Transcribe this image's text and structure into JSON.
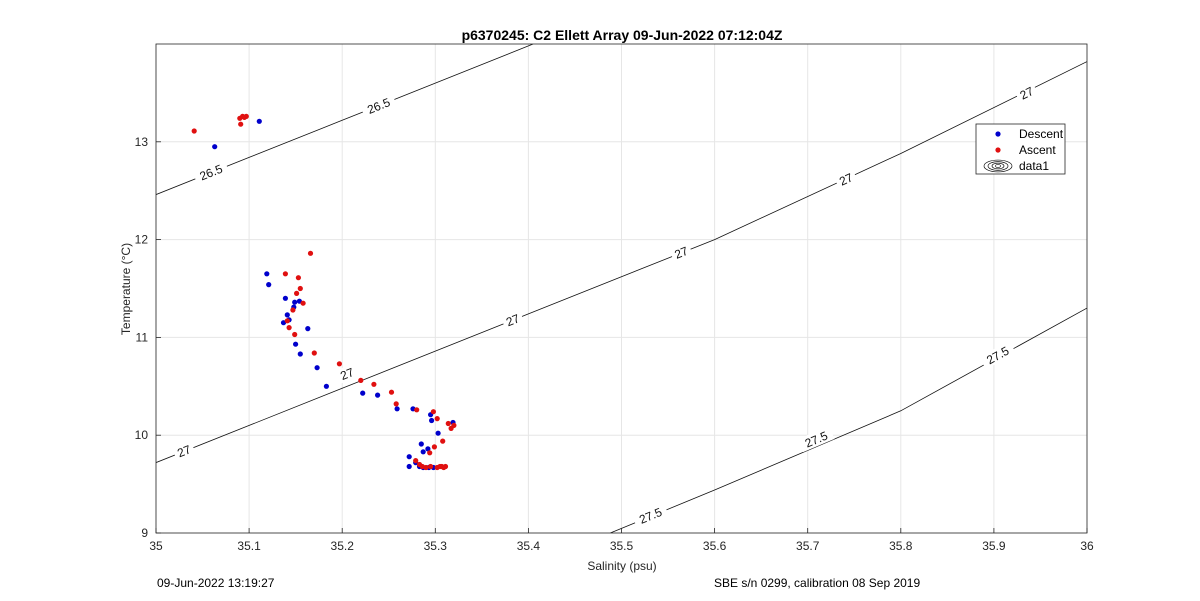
{
  "chart_data": {
    "type": "scatter",
    "title": "p6370245: C2 Ellett Array 09-Jun-2022 07:12:04Z",
    "xlabel": "Salinity (psu)",
    "ylabel": "Temperature (°C)",
    "xlim": [
      35,
      36
    ],
    "ylim": [
      9,
      14
    ],
    "xticks": [
      "35",
      "35.1",
      "35.2",
      "35.3",
      "35.4",
      "35.5",
      "35.6",
      "35.7",
      "35.8",
      "35.9",
      "36"
    ],
    "yticks": [
      "9",
      "10",
      "11",
      "12",
      "13"
    ],
    "grid": true,
    "legend_position": "top-right",
    "series": [
      {
        "name": "Descent",
        "color": "#0000cc",
        "points": [
          [
            35.063,
            12.95
          ],
          [
            35.111,
            13.21
          ],
          [
            35.119,
            11.65
          ],
          [
            35.121,
            11.54
          ],
          [
            35.139,
            11.4
          ],
          [
            35.149,
            11.36
          ],
          [
            35.154,
            11.37
          ],
          [
            35.148,
            11.31
          ],
          [
            35.141,
            11.23
          ],
          [
            35.143,
            11.18
          ],
          [
            35.137,
            11.15
          ],
          [
            35.163,
            11.09
          ],
          [
            35.15,
            10.93
          ],
          [
            35.155,
            10.83
          ],
          [
            35.173,
            10.69
          ],
          [
            35.183,
            10.5
          ],
          [
            35.222,
            10.43
          ],
          [
            35.238,
            10.41
          ],
          [
            35.259,
            10.27
          ],
          [
            35.276,
            10.27
          ],
          [
            35.295,
            10.21
          ],
          [
            35.296,
            10.15
          ],
          [
            35.319,
            10.13
          ],
          [
            35.303,
            10.02
          ],
          [
            35.285,
            9.91
          ],
          [
            35.292,
            9.86
          ],
          [
            35.287,
            9.83
          ],
          [
            35.272,
            9.78
          ],
          [
            35.272,
            9.68
          ],
          [
            35.279,
            9.72
          ],
          [
            35.283,
            9.68
          ],
          [
            35.287,
            9.67
          ],
          [
            35.293,
            9.67
          ],
          [
            35.298,
            9.67
          ]
        ]
      },
      {
        "name": "Ascent",
        "color": "#e01010",
        "points": [
          [
            35.041,
            13.11
          ],
          [
            35.09,
            13.24
          ],
          [
            35.093,
            13.26
          ],
          [
            35.095,
            13.25
          ],
          [
            35.097,
            13.26
          ],
          [
            35.091,
            13.18
          ],
          [
            35.166,
            11.86
          ],
          [
            35.139,
            11.65
          ],
          [
            35.153,
            11.61
          ],
          [
            35.155,
            11.5
          ],
          [
            35.151,
            11.45
          ],
          [
            35.158,
            11.35
          ],
          [
            35.147,
            11.28
          ],
          [
            35.141,
            11.17
          ],
          [
            35.143,
            11.1
          ],
          [
            35.149,
            11.03
          ],
          [
            35.17,
            10.84
          ],
          [
            35.197,
            10.73
          ],
          [
            35.22,
            10.56
          ],
          [
            35.234,
            10.52
          ],
          [
            35.253,
            10.44
          ],
          [
            35.258,
            10.32
          ],
          [
            35.28,
            10.26
          ],
          [
            35.298,
            10.24
          ],
          [
            35.302,
            10.17
          ],
          [
            35.314,
            10.12
          ],
          [
            35.317,
            10.07
          ],
          [
            35.32,
            10.1
          ],
          [
            35.308,
            9.94
          ],
          [
            35.299,
            9.88
          ],
          [
            35.294,
            9.82
          ],
          [
            35.279,
            9.74
          ],
          [
            35.283,
            9.7
          ],
          [
            35.286,
            9.68
          ],
          [
            35.29,
            9.67
          ],
          [
            35.295,
            9.68
          ],
          [
            35.302,
            9.67
          ],
          [
            35.307,
            9.68
          ],
          [
            35.311,
            9.68
          ],
          [
            35.309,
            9.67
          ],
          [
            35.305,
            9.68
          ]
        ]
      },
      {
        "name": "data1",
        "contours": [
          {
            "label": "26.5",
            "points": [
              [
                35.0,
                12.46
              ],
              [
                35.1,
                12.84
              ],
              [
                35.2,
                13.22
              ],
              [
                35.3,
                13.6
              ],
              [
                35.405,
                14.0
              ]
            ]
          },
          {
            "label": "27",
            "points": [
              [
                35.0,
                9.72
              ],
              [
                35.2,
                10.48
              ],
              [
                35.4,
                11.24
              ],
              [
                35.6,
                12.0
              ],
              [
                35.8,
                12.88
              ],
              [
                36.0,
                13.82
              ]
            ]
          },
          {
            "label": "27.5",
            "points": [
              [
                35.488,
                9.0
              ],
              [
                35.6,
                9.44
              ],
              [
                35.8,
                10.25
              ],
              [
                36.0,
                11.3
              ]
            ]
          }
        ],
        "contour_label_positions": [
          {
            "label": "26.5",
            "x": 35.059,
            "y": 12.69
          },
          {
            "label": "26.5",
            "x": 35.239,
            "y": 13.37
          },
          {
            "label": "27",
            "x": 35.03,
            "y": 9.84
          },
          {
            "label": "27",
            "x": 35.205,
            "y": 10.63
          },
          {
            "label": "27",
            "x": 35.383,
            "y": 11.18
          },
          {
            "label": "27",
            "x": 35.564,
            "y": 11.87
          },
          {
            "label": "27",
            "x": 35.741,
            "y": 12.62
          },
          {
            "label": "27",
            "x": 35.935,
            "y": 13.5
          },
          {
            "label": "27.5",
            "x": 35.531,
            "y": 9.18
          },
          {
            "label": "27.5",
            "x": 35.709,
            "y": 9.96
          },
          {
            "label": "27.5",
            "x": 35.904,
            "y": 10.82
          }
        ]
      }
    ]
  },
  "footer": {
    "timestamp": "09-Jun-2022 13:19:27",
    "calibration": "SBE s/n 0299, calibration 08 Sep 2019"
  }
}
